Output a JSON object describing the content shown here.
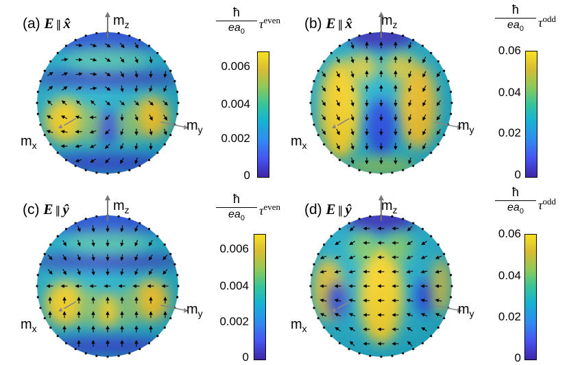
{
  "panels": [
    {
      "label": "(a)",
      "vector": "E",
      "par": "∥",
      "direction": "x̂",
      "colorbar": {
        "hbar": "ħ",
        "denom": "ea",
        "denom_sub": "0",
        "tau": "τ",
        "sup": "even",
        "ticks": [
          "0.006",
          "0.004",
          "0.002",
          "0"
        ]
      }
    },
    {
      "label": "(b)",
      "vector": "E",
      "par": "∥",
      "direction": "x̂",
      "colorbar": {
        "hbar": "ħ",
        "denom": "ea",
        "denom_sub": "0",
        "tau": "τ",
        "sup": "odd",
        "ticks": [
          "0.06",
          "0.04",
          "0.02",
          "0"
        ]
      }
    },
    {
      "label": "(c)",
      "vector": "E",
      "par": "∥",
      "direction": "ŷ",
      "colorbar": {
        "hbar": "ħ",
        "denom": "ea",
        "denom_sub": "0",
        "tau": "τ",
        "sup": "even",
        "ticks": [
          "0.006",
          "0.004",
          "0.002",
          "0"
        ]
      }
    },
    {
      "label": "(d)",
      "vector": "E",
      "par": "∥",
      "direction": "ŷ",
      "colorbar": {
        "hbar": "ħ",
        "denom": "ea",
        "denom_sub": "0",
        "tau": "τ",
        "sup": "odd",
        "ticks": [
          "0.06",
          "0.04",
          "0.02",
          "0"
        ]
      }
    }
  ],
  "axes": {
    "mx": "m",
    "mx_sub": "x",
    "my": "m",
    "my_sub": "y",
    "mz": "m",
    "mz_sub": "z"
  },
  "colors": {
    "low": "#3e26a8",
    "mid": "#16b3d2",
    "high": "#fae022"
  }
}
